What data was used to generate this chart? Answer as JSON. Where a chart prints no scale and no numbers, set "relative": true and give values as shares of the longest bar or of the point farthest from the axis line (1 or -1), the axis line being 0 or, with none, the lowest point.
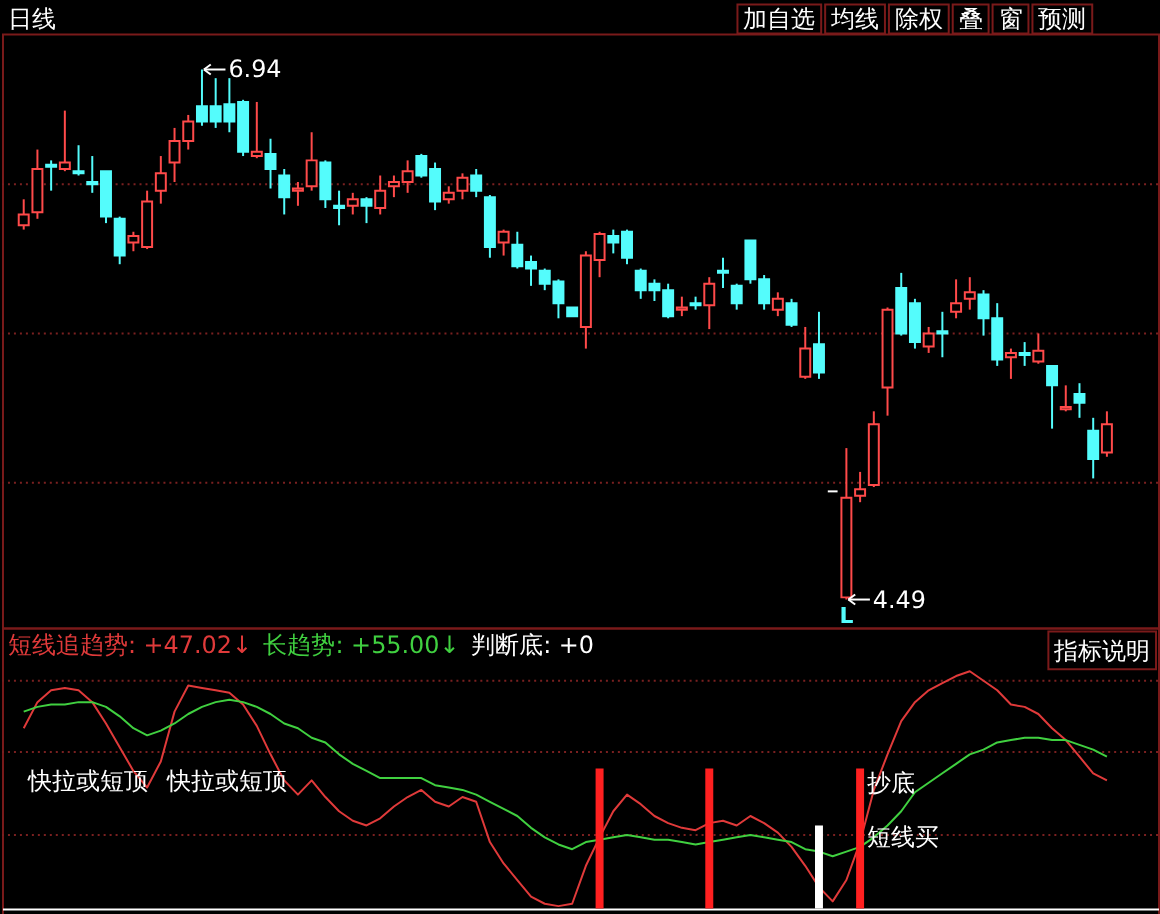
{
  "chart_data": [
    {
      "type": "candlestick",
      "title": "日线",
      "tick_labels": false,
      "categories": [
        null,
        null,
        null,
        null,
        null,
        null,
        null,
        null,
        null,
        null,
        null,
        null,
        null,
        null,
        null,
        null,
        null,
        null,
        null,
        null,
        null,
        null,
        null,
        null,
        null,
        null,
        null,
        null,
        null,
        null,
        null,
        null,
        null,
        null,
        null,
        null,
        null,
        null,
        null,
        null,
        null,
        null,
        null,
        null,
        null,
        null,
        null,
        null,
        null,
        null,
        null,
        null,
        null,
        null,
        null,
        null,
        null,
        null,
        null,
        null,
        null,
        null,
        null,
        null,
        null,
        null,
        null,
        null,
        null,
        null,
        null,
        null,
        null,
        null,
        null,
        null,
        null,
        null,
        null,
        null
      ],
      "ohlc": [
        [
          6.22,
          6.34,
          6.2,
          6.27
        ],
        [
          6.28,
          6.57,
          6.25,
          6.48
        ],
        [
          6.5,
          6.52,
          6.38,
          6.49
        ],
        [
          6.48,
          6.75,
          6.47,
          6.51
        ],
        [
          6.47,
          6.59,
          6.45,
          6.46
        ],
        [
          6.42,
          6.54,
          6.37,
          6.41
        ],
        [
          6.47,
          6.47,
          6.23,
          6.26
        ],
        [
          6.25,
          6.26,
          6.04,
          6.08
        ],
        [
          6.14,
          6.19,
          6.1,
          6.17
        ],
        [
          6.12,
          6.38,
          6.11,
          6.33
        ],
        [
          6.38,
          6.54,
          6.32,
          6.46
        ],
        [
          6.51,
          6.67,
          6.42,
          6.61
        ],
        [
          6.61,
          6.73,
          6.57,
          6.7
        ],
        [
          6.77,
          6.94,
          6.68,
          6.7
        ],
        [
          6.77,
          6.9,
          6.67,
          6.7
        ],
        [
          6.78,
          6.9,
          6.65,
          6.7
        ],
        [
          6.79,
          6.8,
          6.54,
          6.56
        ],
        [
          6.54,
          6.79,
          6.53,
          6.56
        ],
        [
          6.55,
          6.62,
          6.39,
          6.48
        ],
        [
          6.45,
          6.48,
          6.27,
          6.35
        ],
        [
          6.38,
          6.42,
          6.31,
          6.39
        ],
        [
          6.4,
          6.65,
          6.38,
          6.52
        ],
        [
          6.51,
          6.52,
          6.3,
          6.34
        ],
        [
          6.31,
          6.38,
          6.22,
          6.3
        ],
        [
          6.31,
          6.37,
          6.27,
          6.34
        ],
        [
          6.34,
          6.35,
          6.23,
          6.31
        ],
        [
          6.3,
          6.45,
          6.27,
          6.38
        ],
        [
          6.4,
          6.45,
          6.35,
          6.42
        ],
        [
          6.42,
          6.52,
          6.37,
          6.47
        ],
        [
          6.54,
          6.55,
          6.44,
          6.45
        ],
        [
          6.48,
          6.51,
          6.29,
          6.33
        ],
        [
          6.34,
          6.4,
          6.32,
          6.37
        ],
        [
          6.38,
          6.46,
          6.34,
          6.44
        ],
        [
          6.45,
          6.48,
          6.35,
          6.38
        ],
        [
          6.35,
          6.36,
          6.07,
          6.12
        ],
        [
          6.14,
          6.2,
          6.08,
          6.19
        ],
        [
          6.13,
          6.19,
          6.02,
          6.03
        ],
        [
          6.05,
          6.08,
          5.94,
          6.02
        ],
        [
          6.01,
          6.02,
          5.92,
          5.95
        ],
        [
          5.96,
          5.97,
          5.79,
          5.86
        ],
        [
          5.84,
          5.84,
          5.8,
          5.8
        ],
        [
          5.75,
          6.1,
          5.65,
          6.08
        ],
        [
          6.06,
          6.19,
          5.98,
          6.18
        ],
        [
          6.17,
          6.2,
          6.09,
          6.14
        ],
        [
          6.19,
          6.2,
          6.04,
          6.07
        ],
        [
          6.01,
          6.02,
          5.88,
          5.92
        ],
        [
          5.95,
          5.97,
          5.87,
          5.92
        ],
        [
          5.92,
          5.95,
          5.79,
          5.8
        ],
        [
          5.83,
          5.89,
          5.8,
          5.84
        ],
        [
          5.86,
          5.89,
          5.83,
          5.85
        ],
        [
          5.85,
          5.98,
          5.74,
          5.95
        ],
        [
          6.01,
          6.07,
          5.93,
          6.0
        ],
        [
          5.94,
          5.95,
          5.83,
          5.86
        ],
        [
          6.15,
          6.15,
          5.95,
          5.97
        ],
        [
          5.97,
          5.99,
          5.83,
          5.86
        ],
        [
          5.83,
          5.91,
          5.8,
          5.88
        ],
        [
          5.86,
          5.88,
          5.75,
          5.76
        ],
        [
          5.52,
          5.75,
          5.51,
          5.65
        ],
        [
          5.67,
          5.82,
          5.51,
          5.54
        ],
        [
          4.99,
          4.99,
          4.99,
          4.99
        ],
        [
          4.5,
          5.19,
          4.49,
          4.96
        ],
        [
          4.97,
          5.08,
          4.94,
          5.0
        ],
        [
          5.02,
          5.36,
          5.01,
          5.3
        ],
        [
          5.47,
          5.84,
          5.34,
          5.83
        ],
        [
          5.93,
          6.0,
          5.71,
          5.72
        ],
        [
          5.86,
          5.88,
          5.65,
          5.68
        ],
        [
          5.66,
          5.75,
          5.63,
          5.72
        ],
        [
          5.73,
          5.82,
          5.61,
          5.72
        ],
        [
          5.82,
          5.97,
          5.79,
          5.86
        ],
        [
          5.88,
          5.98,
          5.83,
          5.91
        ],
        [
          5.9,
          5.92,
          5.71,
          5.79
        ],
        [
          5.79,
          5.86,
          5.57,
          5.6
        ],
        [
          5.61,
          5.65,
          5.51,
          5.63
        ],
        [
          5.63,
          5.68,
          5.57,
          5.62
        ],
        [
          5.59,
          5.72,
          5.58,
          5.64
        ],
        [
          5.57,
          5.57,
          5.28,
          5.48
        ],
        [
          5.37,
          5.48,
          5.36,
          5.38
        ],
        [
          5.44,
          5.49,
          5.33,
          5.4
        ],
        [
          5.27,
          5.33,
          5.05,
          5.14
        ],
        [
          5.17,
          5.36,
          5.15,
          5.3
        ]
      ],
      "colors": [
        "#ff4a4a",
        "#ff4a4a",
        "#54fcfc",
        "#ff4a4a",
        "#54fcfc",
        "#54fcfc",
        "#54fcfc",
        "#54fcfc",
        "#ff4a4a",
        "#ff4a4a",
        "#ff4a4a",
        "#ff4a4a",
        "#ff4a4a",
        "#54fcfc",
        "#54fcfc",
        "#54fcfc",
        "#54fcfc",
        "#ff4a4a",
        "#54fcfc",
        "#54fcfc",
        "#ff4a4a",
        "#ff4a4a",
        "#54fcfc",
        "#54fcfc",
        "#ff4a4a",
        "#54fcfc",
        "#ff4a4a",
        "#ff4a4a",
        "#ff4a4a",
        "#54fcfc",
        "#54fcfc",
        "#ff4a4a",
        "#ff4a4a",
        "#54fcfc",
        "#54fcfc",
        "#ff4a4a",
        "#54fcfc",
        "#54fcfc",
        "#54fcfc",
        "#54fcfc",
        "#54fcfc",
        "#ff4a4a",
        "#ff4a4a",
        "#54fcfc",
        "#54fcfc",
        "#54fcfc",
        "#54fcfc",
        "#54fcfc",
        "#ff4a4a",
        "#54fcfc",
        "#ff4a4a",
        "#54fcfc",
        "#54fcfc",
        "#54fcfc",
        "#54fcfc",
        "#ff4a4a",
        "#54fcfc",
        "#ff4a4a",
        "#54fcfc",
        "#ffffff",
        "#ff4a4a",
        "#ff4a4a",
        "#ff4a4a",
        "#ff4a4a",
        "#54fcfc",
        "#54fcfc",
        "#ff4a4a",
        "#54fcfc",
        "#ff4a4a",
        "#ff4a4a",
        "#54fcfc",
        "#54fcfc",
        "#ff4a4a",
        "#54fcfc",
        "#ff4a4a",
        "#54fcfc",
        "#ff4a4a",
        "#54fcfc",
        "#54fcfc",
        "#ff4a4a"
      ],
      "ref_lines": [
        {
          "axis": "y",
          "value": 6.41,
          "color": "#7a2020",
          "line_style": "dotted"
        },
        {
          "axis": "y",
          "value": 5.72,
          "color": "#7a2020",
          "line_style": "dotted"
        },
        {
          "axis": "y",
          "value": 5.03,
          "color": "#7a2020",
          "line_style": "dotted"
        }
      ],
      "annotations": [
        "6.94",
        "4.49",
        "L"
      ]
    },
    {
      "type": "other",
      "annotations": [
        "加自选",
        "均线",
        "除权",
        "叠",
        "窗",
        "预测"
      ]
    },
    {
      "type": "line",
      "relative": true,
      "tick_labels": false,
      "categories": [
        null,
        null,
        null,
        null,
        null,
        null,
        null,
        null,
        null,
        null,
        null,
        null,
        null,
        null,
        null,
        null,
        null,
        null,
        null,
        null,
        null,
        null,
        null,
        null,
        null,
        null,
        null,
        null,
        null,
        null,
        null,
        null,
        null,
        null,
        null,
        null,
        null,
        null,
        null,
        null,
        null,
        null,
        null,
        null,
        null,
        null,
        null,
        null,
        null,
        null,
        null,
        null,
        null,
        null,
        null,
        null,
        null,
        null,
        null,
        null,
        null,
        null,
        null,
        null,
        null,
        null,
        null,
        null,
        null,
        null,
        null,
        null,
        null,
        null,
        null,
        null,
        null,
        null,
        null,
        null
      ],
      "series": [
        {
          "name": "短线追趋势: +47.02↓",
          "color": "#e03a3a",
          "values": [
            0.76,
            0.87,
            0.92,
            0.93,
            0.92,
            0.87,
            0.78,
            0.68,
            0.58,
            0.51,
            0.62,
            0.83,
            0.94,
            0.93,
            0.92,
            0.91,
            0.86,
            0.77,
            0.65,
            0.54,
            0.48,
            0.54,
            0.47,
            0.41,
            0.37,
            0.35,
            0.38,
            0.43,
            0.47,
            0.5,
            0.45,
            0.43,
            0.47,
            0.45,
            0.28,
            0.19,
            0.12,
            0.05,
            0.02,
            0.01,
            0.02,
            0.18,
            0.3,
            0.41,
            0.48,
            0.44,
            0.39,
            0.36,
            0.34,
            0.33,
            0.36,
            0.37,
            0.35,
            0.39,
            0.36,
            0.32,
            0.26,
            0.18,
            0.09,
            0.03,
            0.12,
            0.28,
            0.5,
            0.65,
            0.79,
            0.87,
            0.92,
            0.95,
            0.98,
            1,
            0.96,
            0.92,
            0.86,
            0.85,
            0.82,
            0.76,
            0.71,
            0.64,
            0.57,
            0.54
          ]
        },
        {
          "name": "长趋势: +55.00↓",
          "color": "#40d040",
          "values": [
            0.83,
            0.85,
            0.86,
            0.86,
            0.87,
            0.87,
            0.85,
            0.81,
            0.76,
            0.73,
            0.75,
            0.78,
            0.82,
            0.85,
            0.87,
            0.88,
            0.87,
            0.85,
            0.82,
            0.78,
            0.76,
            0.72,
            0.7,
            0.65,
            0.61,
            0.58,
            0.55,
            0.55,
            0.55,
            0.55,
            0.52,
            0.51,
            0.5,
            0.48,
            0.45,
            0.42,
            0.39,
            0.34,
            0.3,
            0.27,
            0.25,
            0.28,
            0.29,
            0.3,
            0.31,
            0.3,
            0.29,
            0.29,
            0.28,
            0.27,
            0.28,
            0.29,
            0.3,
            0.31,
            0.3,
            0.29,
            0.28,
            0.25,
            0.24,
            0.22,
            0.24,
            0.26,
            0.3,
            0.35,
            0.41,
            0.49,
            0.53,
            0.57,
            0.61,
            0.65,
            0.67,
            0.7,
            0.71,
            0.72,
            0.72,
            0.71,
            0.71,
            0.69,
            0.67,
            0.64
          ]
        },
        {
          "name": "判断底: +0",
          "type": "bar",
          "color": "#ffffff",
          "values": [
            null,
            null,
            null,
            null,
            null,
            null,
            null,
            null,
            null,
            null,
            null,
            null,
            null,
            null,
            null,
            null,
            null,
            null,
            null,
            null,
            null,
            null,
            null,
            null,
            null,
            null,
            null,
            null,
            null,
            null,
            null,
            null,
            null,
            null,
            null,
            null,
            null,
            null,
            null,
            null,
            null,
            null,
            null,
            null,
            null,
            null,
            null,
            null,
            null,
            null,
            null,
            null,
            null,
            null,
            null,
            null,
            null,
            null,
            0.35,
            null,
            null,
            null,
            null,
            null,
            null,
            null,
            null,
            null,
            null,
            null,
            null,
            null,
            null,
            null,
            null,
            null,
            null,
            null,
            null,
            null
          ]
        },
        {
          "type": "bar",
          "color": "#ff2020",
          "values": [
            null,
            null,
            null,
            null,
            null,
            null,
            null,
            null,
            null,
            null,
            null,
            null,
            null,
            null,
            null,
            null,
            null,
            null,
            null,
            null,
            null,
            null,
            null,
            null,
            null,
            null,
            null,
            null,
            null,
            null,
            null,
            null,
            null,
            null,
            null,
            null,
            null,
            null,
            null,
            null,
            null,
            null,
            0.59,
            null,
            null,
            null,
            null,
            null,
            null,
            null,
            0.59,
            null,
            null,
            null,
            null,
            null,
            null,
            null,
            null,
            null,
            null,
            0.59,
            null,
            null,
            null,
            null,
            null,
            null,
            null,
            null,
            null,
            null,
            null,
            null,
            null,
            null,
            null,
            null,
            null,
            null
          ]
        }
      ],
      "ref_lines": [
        {
          "axis": "y",
          "value": 0.96,
          "color": "#7a2020",
          "line_style": "dotted"
        },
        {
          "axis": "y",
          "value": 0.66,
          "color": "#7a2020",
          "line_style": "dotted"
        },
        {
          "axis": "y",
          "value": 0.31,
          "color": "#7a2020",
          "line_style": "dotted"
        }
      ],
      "annotations": [
        "指标说明",
        "快拉或短顶",
        "快拉或短顶",
        "抄底",
        "短线买"
      ]
    }
  ]
}
